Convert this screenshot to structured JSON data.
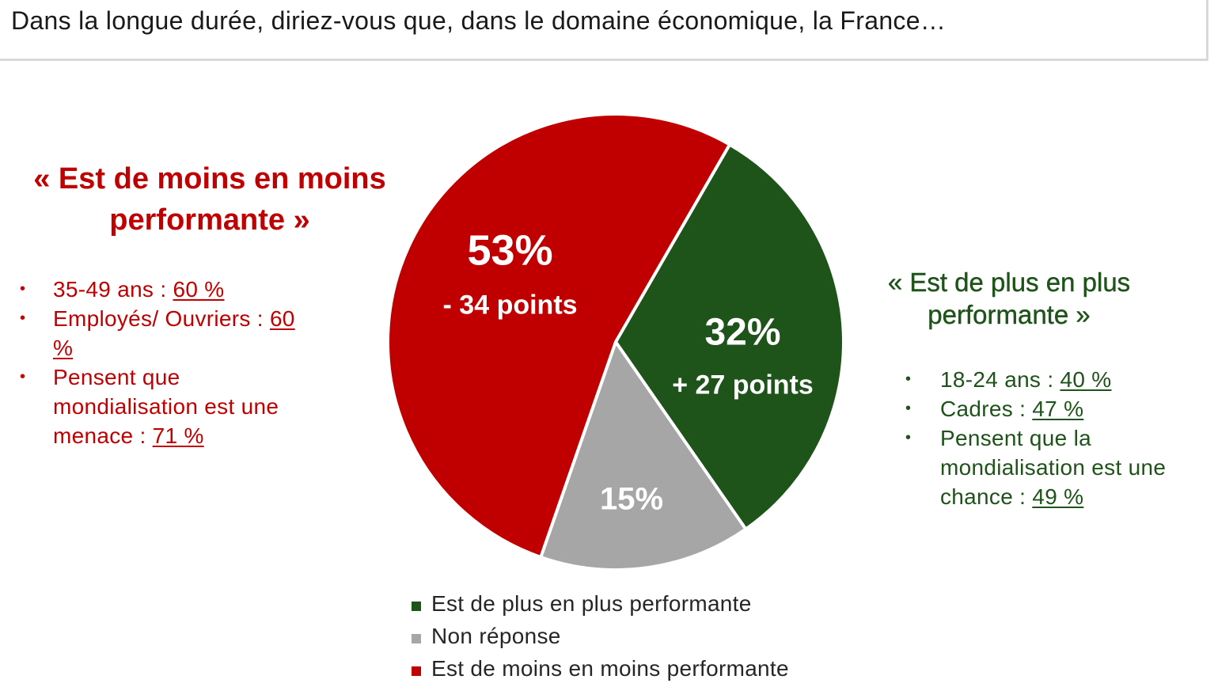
{
  "question": "Dans la longue durée, diriez-vous que, dans le domaine économique, la  France…",
  "left_panel": {
    "title": "« Est de moins en moins performante »",
    "bullets": [
      {
        "label": "35-49 ans : ",
        "value": "60 %"
      },
      {
        "label": "Employés/ Ouvriers : ",
        "value": "60 %"
      },
      {
        "label": "Pensent que mondialisation est une menace : ",
        "value": "71 %"
      }
    ]
  },
  "right_panel": {
    "title": "« Est de plus en plus performante »",
    "bullets": [
      {
        "label": "18-24 ans : ",
        "value": "40 %"
      },
      {
        "label": "Cadres : ",
        "value": "47 %"
      },
      {
        "label": "Pensent que la mondialisation est une chance : ",
        "value": "49 %"
      }
    ]
  },
  "colors": {
    "green": "#1e5319",
    "grey": "#a6a6a6",
    "red": "#c00000"
  },
  "chart_data": {
    "type": "pie",
    "title": "",
    "slices": [
      {
        "name": "Est de plus en plus performante",
        "value": 32,
        "label": "32%",
        "sublabel": "+ 27 points",
        "color": "#1e5319"
      },
      {
        "name": "Non réponse",
        "value": 15,
        "label": "15%",
        "sublabel": "",
        "color": "#a6a6a6"
      },
      {
        "name": "Est de moins en moins performante",
        "value": 53,
        "label": "53%",
        "sublabel": "- 34 points",
        "color": "#c00000"
      }
    ],
    "legend": {
      "position": "bottom",
      "entries": [
        "Est de plus en plus performante",
        "Non réponse",
        "Est de moins en moins performante"
      ]
    }
  }
}
